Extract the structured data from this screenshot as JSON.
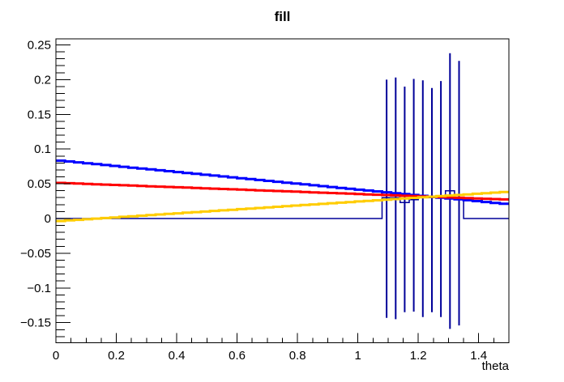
{
  "canvas": {
    "background": "#FFFFFF",
    "frame_color": "#000000",
    "text_color": "#000000"
  },
  "chart_data": {
    "type": "line",
    "title": "fill",
    "xlabel": "theta",
    "ylabel": "",
    "xlim": [
      0,
      1.5
    ],
    "ylim": [
      -0.1789,
      0.2587
    ],
    "grid": false,
    "legend": null,
    "x_tick_values": [
      0,
      0.2,
      0.4,
      0.6,
      0.8,
      1,
      1.2,
      1.4
    ],
    "x_tick_labels": [
      "0",
      "0.2",
      "0.4",
      "0.6",
      "0.8",
      "1",
      "1.2",
      "1.4"
    ],
    "x_minor_step": 0.05,
    "y_tick_values": [
      -0.15,
      -0.1,
      -0.05,
      0,
      0.05,
      0.1,
      0.15,
      0.2,
      0.25
    ],
    "y_tick_labels": [
      "−0.15",
      "−0.1",
      "−0.05",
      "0",
      "0.05",
      "0.1",
      "0.15",
      "0.2",
      "0.25"
    ],
    "y_minor_step": 0.01,
    "series": [
      {
        "name": "blue-falling-line",
        "type": "step-line",
        "color": "#0000FF",
        "width": 3,
        "bins": 50,
        "v_start": 0.084,
        "v_end": 0.0206
      },
      {
        "name": "red-falling-line",
        "type": "step-line",
        "color": "#FF0000",
        "width": 3,
        "bins": 50,
        "v_start": 0.0515,
        "v_end": 0.0272
      },
      {
        "name": "yellow-rising-line",
        "type": "step-line",
        "color": "#FFCC00",
        "width": 3,
        "bins": 50,
        "v_start": -0.004,
        "v_end": 0.0386
      }
    ],
    "histogram": {
      "name": "navy-spiky-histogram",
      "color": "#000099",
      "base_width": 1.5,
      "spike_width": 2,
      "zero_ranges": [
        [
          0,
          1.08
        ],
        [
          1.35,
          1.5
        ]
      ],
      "base_bins": [
        {
          "from": 1.08,
          "to": 1.14,
          "value": 0.03
        },
        {
          "from": 1.14,
          "to": 1.17,
          "value": 0.023
        },
        {
          "from": 1.17,
          "to": 1.2,
          "value": 0.027
        },
        {
          "from": 1.2,
          "to": 1.29,
          "value": 0.03
        },
        {
          "from": 1.29,
          "to": 1.32,
          "value": 0.04
        },
        {
          "from": 1.32,
          "to": 1.35,
          "value": 0.029
        }
      ],
      "spikes": [
        {
          "theta": 1.095,
          "up": 0.2,
          "down": -0.143
        },
        {
          "theta": 1.125,
          "up": 0.203,
          "down": -0.145
        },
        {
          "theta": 1.155,
          "up": 0.19,
          "down": -0.135
        },
        {
          "theta": 1.185,
          "up": 0.201,
          "down": -0.134
        },
        {
          "theta": 1.215,
          "up": 0.199,
          "down": -0.142
        },
        {
          "theta": 1.245,
          "up": 0.188,
          "down": -0.135
        },
        {
          "theta": 1.275,
          "up": 0.198,
          "down": -0.142
        },
        {
          "theta": 1.305,
          "up": 0.238,
          "down": -0.159
        },
        {
          "theta": 1.335,
          "up": 0.227,
          "down": -0.154
        }
      ]
    }
  }
}
